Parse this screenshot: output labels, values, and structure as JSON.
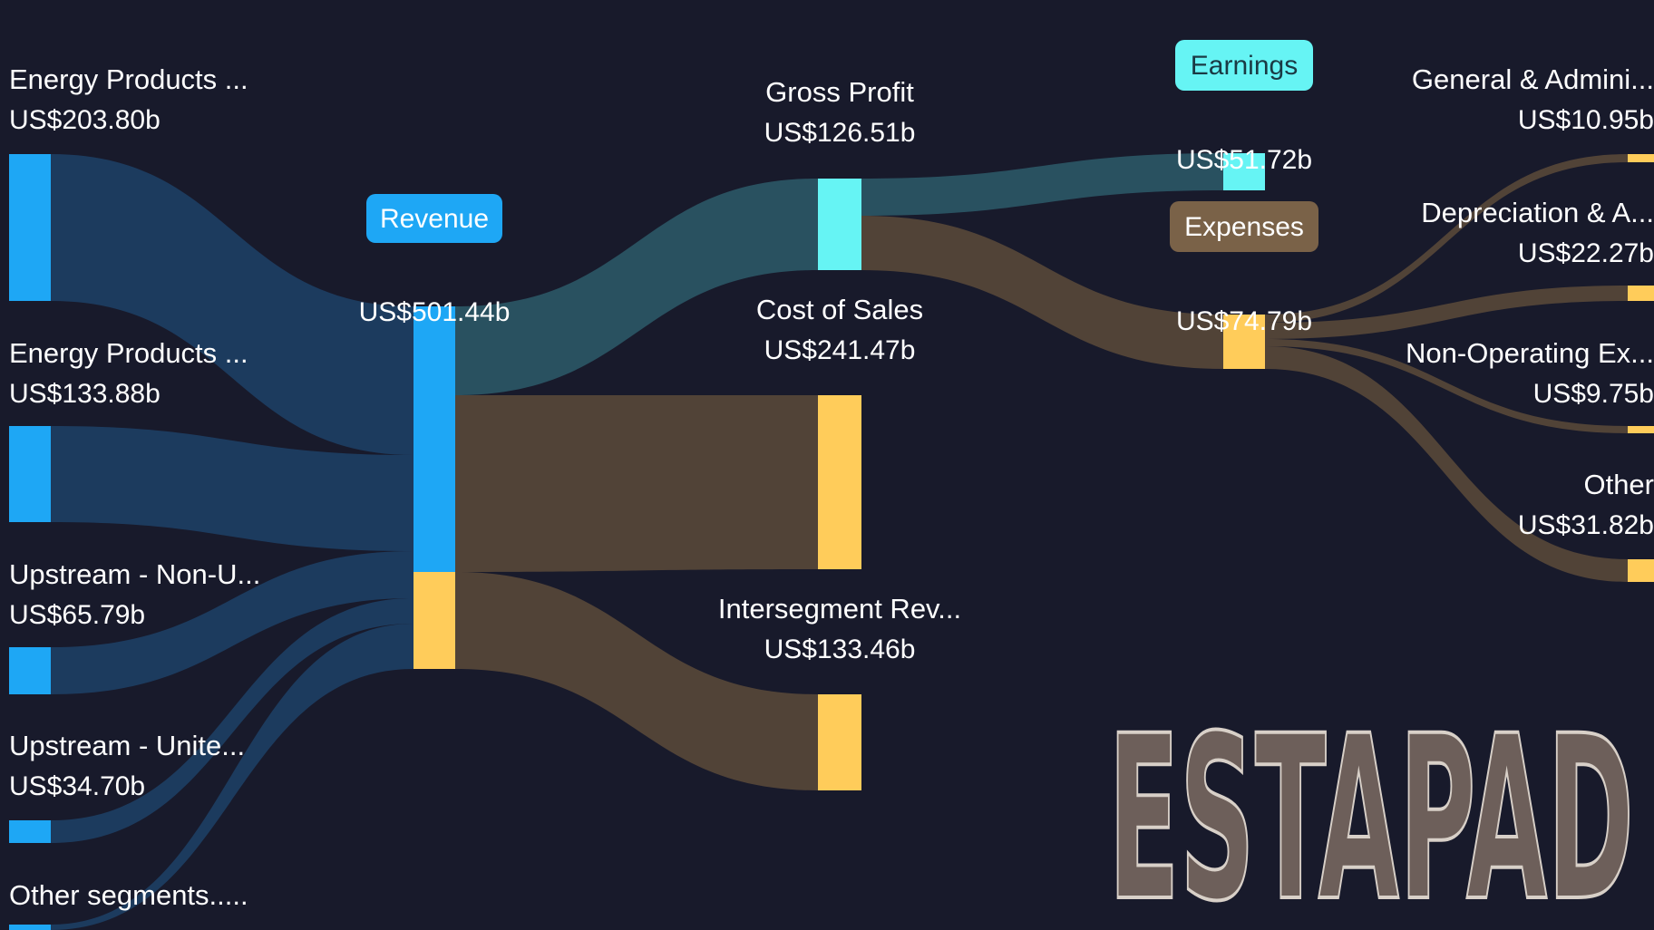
{
  "chart_data": {
    "type": "sankey",
    "currency_note": "US$",
    "nodes": [
      {
        "id": "energy_products_1",
        "label": "Energy Products ...",
        "value_text": "US$203.80b",
        "value": 203.8,
        "color": "#1ea7f5"
      },
      {
        "id": "energy_products_2",
        "label": "Energy Products ...",
        "value_text": "US$133.88b",
        "value": 133.88,
        "color": "#1ea7f5"
      },
      {
        "id": "upstream_non_us",
        "label": "Upstream - Non-U...",
        "value_text": "US$65.79b",
        "value": 65.79,
        "color": "#1ea7f5"
      },
      {
        "id": "upstream_us",
        "label": "Upstream - Unite...",
        "value_text": "US$34.70b",
        "value": 34.7,
        "color": "#1ea7f5"
      },
      {
        "id": "other_segments",
        "label": "Other segments.....",
        "value_text": "",
        "value": null,
        "color": "#1ea7f5"
      },
      {
        "id": "revenue",
        "label": "Revenue",
        "value_text": "US$501.44b",
        "value": 501.44,
        "color": "#1ea7f5",
        "badge": true
      },
      {
        "id": "gross_profit",
        "label": "Gross Profit",
        "value_text": "US$126.51b",
        "value": 126.51,
        "color": "#66f4f4"
      },
      {
        "id": "cost_of_sales",
        "label": "Cost of Sales",
        "value_text": "US$241.47b",
        "value": 241.47,
        "color": "#ffcc5a"
      },
      {
        "id": "intersegment_rev",
        "label": "Intersegment Rev...",
        "value_text": "US$133.46b",
        "value": 133.46,
        "color": "#ffcc5a"
      },
      {
        "id": "earnings",
        "label": "Earnings",
        "value_text": "US$51.72b",
        "value": 51.72,
        "color": "#66f4f4",
        "badge": true
      },
      {
        "id": "expenses",
        "label": "Expenses",
        "value_text": "US$74.79b",
        "value": 74.79,
        "color": "#ffcc5a",
        "badge": true
      },
      {
        "id": "general_admin",
        "label": "General & Admini...",
        "value_text": "US$10.95b",
        "value": 10.95,
        "color": "#ffcc5a"
      },
      {
        "id": "depreciation",
        "label": "Depreciation & A...",
        "value_text": "US$22.27b",
        "value": 22.27,
        "color": "#ffcc5a"
      },
      {
        "id": "non_operating",
        "label": "Non-Operating Ex...",
        "value_text": "US$9.75b",
        "value": 9.75,
        "color": "#ffcc5a"
      },
      {
        "id": "other_expenses",
        "label": "Other",
        "value_text": "US$31.82b",
        "value": 31.82,
        "color": "#ffcc5a"
      }
    ],
    "links": [
      {
        "source": "energy_products_1",
        "target": "revenue"
      },
      {
        "source": "energy_products_2",
        "target": "revenue"
      },
      {
        "source": "upstream_non_us",
        "target": "revenue"
      },
      {
        "source": "upstream_us",
        "target": "revenue"
      },
      {
        "source": "other_segments",
        "target": "revenue"
      },
      {
        "source": "revenue",
        "target": "gross_profit"
      },
      {
        "source": "revenue",
        "target": "cost_of_sales"
      },
      {
        "source": "revenue",
        "target": "intersegment_rev"
      },
      {
        "source": "gross_profit",
        "target": "earnings"
      },
      {
        "source": "gross_profit",
        "target": "expenses"
      },
      {
        "source": "expenses",
        "target": "general_admin"
      },
      {
        "source": "expenses",
        "target": "depreciation"
      },
      {
        "source": "expenses",
        "target": "non_operating"
      },
      {
        "source": "expenses",
        "target": "other_expenses"
      }
    ]
  },
  "colors": {
    "background": "#181a2b",
    "revenue_flow": "#1d3e63",
    "profit_flow": "#2b5665",
    "cost_flow": "#574638",
    "badge_expenses": "#7a6248",
    "badge_earnings_text": "#1a3a44"
  },
  "watermark": {
    "text": "ESTAPAD",
    "color": "#6d5f5a"
  }
}
